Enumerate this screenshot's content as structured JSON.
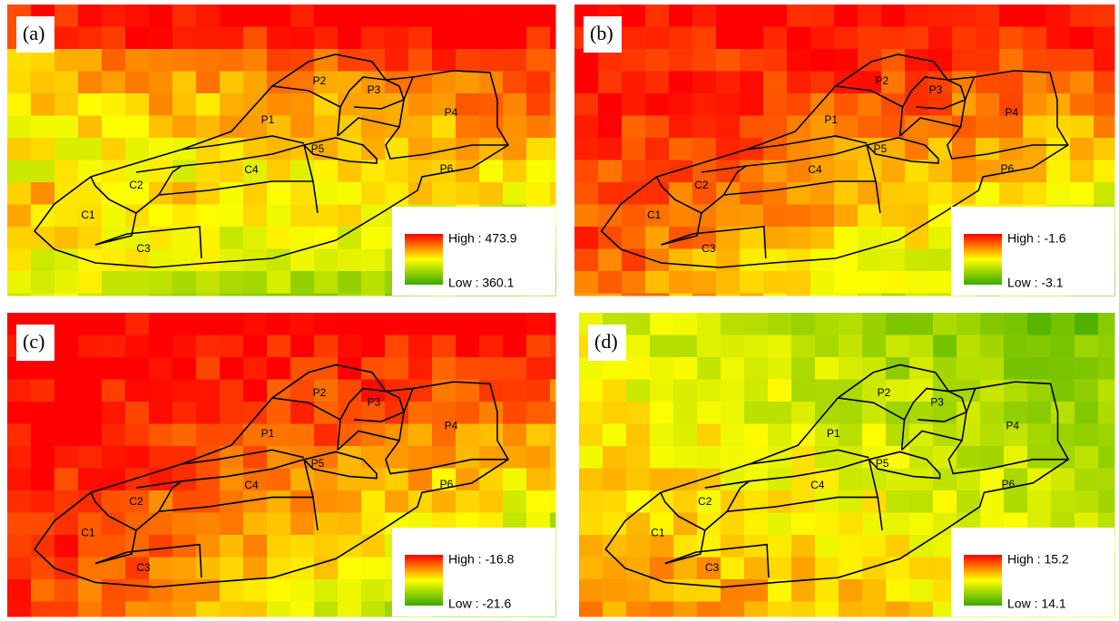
{
  "panels": [
    {
      "label": "(a)",
      "legend": {
        "high": "High : 473.9",
        "low": "Low : 360.1"
      },
      "regions": [
        "P1",
        "P2",
        "P3",
        "P4",
        "P5",
        "P6",
        "C1",
        "C2",
        "C3",
        "C4"
      ]
    },
    {
      "label": "(b)",
      "legend": {
        "high": "High : -1.6",
        "low": "Low : -3.1"
      },
      "regions": [
        "P1",
        "P2",
        "P3",
        "P4",
        "P5",
        "P6",
        "C1",
        "C2",
        "C3",
        "C4"
      ]
    },
    {
      "label": "(c)",
      "legend": {
        "high": "High : -16.8",
        "low": "Low : -21.6"
      },
      "regions": [
        "P1",
        "P2",
        "P3",
        "P4",
        "P5",
        "P6",
        "C1",
        "C2",
        "C3",
        "C4"
      ]
    },
    {
      "label": "(d)",
      "legend": {
        "high": "High : 15.2",
        "low": "Low : 14.1"
      },
      "regions": [
        "P1",
        "P2",
        "P3",
        "P4",
        "P5",
        "P6",
        "C1",
        "C2",
        "C3",
        "C4"
      ]
    }
  ]
}
